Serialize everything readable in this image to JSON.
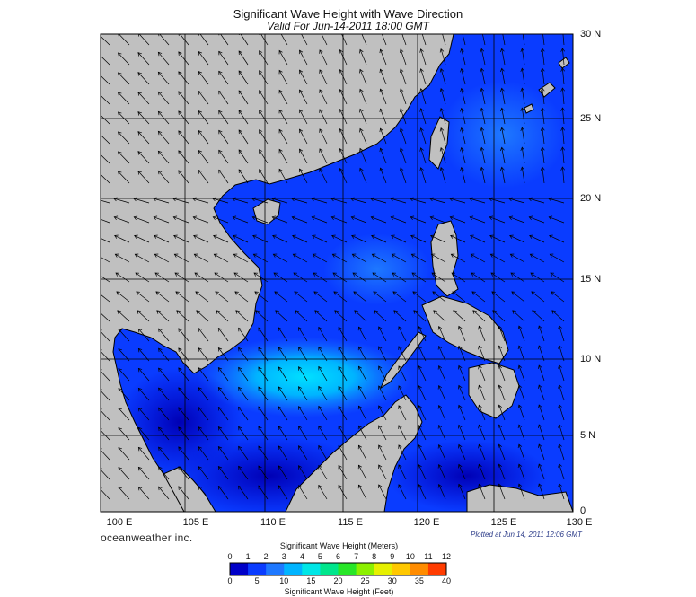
{
  "header": {
    "title": "Significant Wave Height with Wave Direction",
    "subtitle": "Valid For Jun-14-2011 18:00 GMT"
  },
  "map": {
    "lon_range": [
      99,
      130
    ],
    "lat_range": [
      0,
      30
    ],
    "lat_labels": [
      "30 N",
      "25 N",
      "20 N",
      "15 N",
      "10 N",
      "5 N",
      "0"
    ],
    "lon_labels": [
      "100 E",
      "105 E",
      "110 E",
      "115 E",
      "120 E",
      "125 E",
      "130 E"
    ],
    "land_color": "#c0c0c0",
    "grid": true
  },
  "footer": {
    "brand": "oceanweather inc.",
    "plotted": "Plotted at Jun 14, 2011 12:06 GMT"
  },
  "colorbar": {
    "meters_title": "Significant Wave Height (Meters)",
    "feet_title": "Significant Wave Height (Feet)",
    "meters_ticks": [
      "0",
      "1",
      "2",
      "3",
      "4",
      "5",
      "6",
      "7",
      "8",
      "9",
      "10",
      "11",
      "12"
    ],
    "feet_ticks": [
      "0",
      "5",
      "10",
      "15",
      "20",
      "25",
      "30",
      "35",
      "40"
    ],
    "colors": [
      "#0000c8",
      "#0a3cff",
      "#1e78ff",
      "#00b4ff",
      "#00e6e6",
      "#00e68c",
      "#28e628",
      "#8cf000",
      "#e6f000",
      "#ffc800",
      "#ff8c00",
      "#ff3c00"
    ]
  }
}
